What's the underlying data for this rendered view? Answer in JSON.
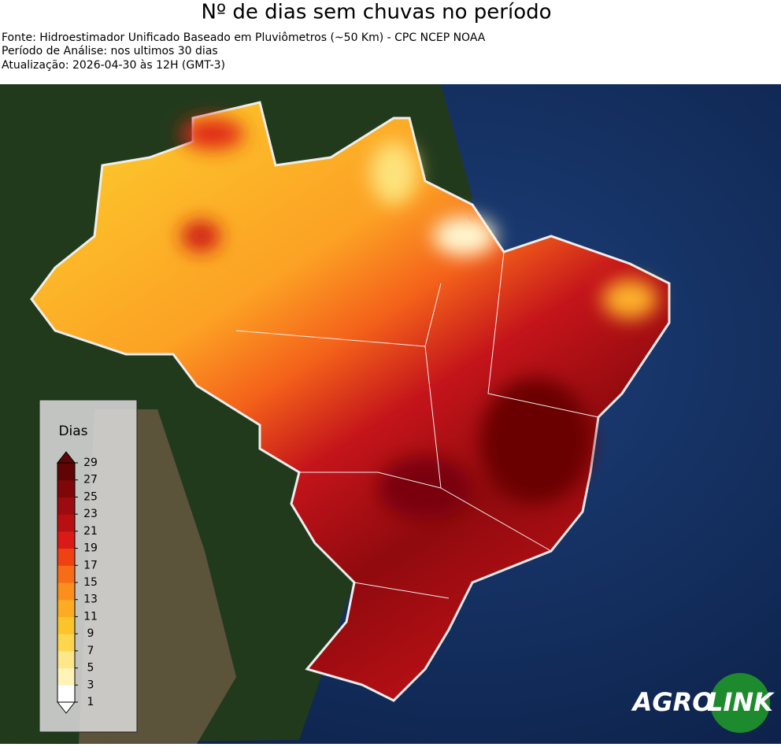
{
  "header": {
    "title": "Nº de dias sem chuvas no período",
    "lines": [
      "Fonte: Hidroestimador Unificado Baseado em Pluviômetros (~50 Km) - CPC NCEP NOAA",
      "Período de Análise: nos ultimos 30 dias",
      "Atualização: 2026-04-30 às 12H (GMT-3)"
    ]
  },
  "legend": {
    "title": "Dias",
    "range": [
      1,
      29
    ],
    "ticks": [
      1,
      3,
      5,
      7,
      9,
      11,
      13,
      15,
      17,
      19,
      21,
      23,
      25,
      27,
      29
    ],
    "colors": [
      "#ffffff",
      "#fff3b8",
      "#fee68a",
      "#fdd64e",
      "#fcc42c",
      "#fcab22",
      "#fb8e1c",
      "#f76c16",
      "#ee4213",
      "#d91a17",
      "#b81012",
      "#9c0b0f",
      "#7f0709",
      "#600405"
    ]
  },
  "logo": {
    "left": "AGRO",
    "right": "LINK"
  }
}
